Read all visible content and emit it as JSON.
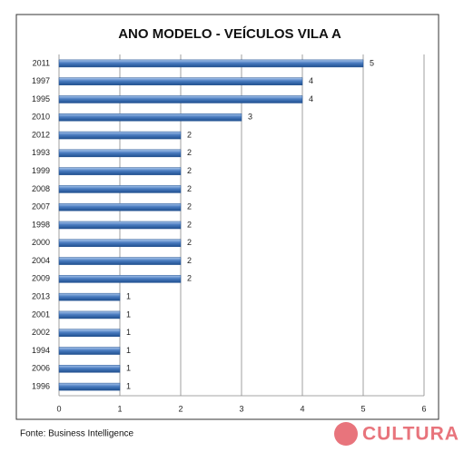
{
  "chart_data": {
    "type": "hbar",
    "title": "ANO MODELO - VEÍCULOS VILA A",
    "categories": [
      "2011",
      "1997",
      "1995",
      "2010",
      "2012",
      "1993",
      "1999",
      "2008",
      "2007",
      "1998",
      "2000",
      "2004",
      "2009",
      "2013",
      "2001",
      "2002",
      "1994",
      "2006",
      "1996"
    ],
    "values": [
      5,
      4,
      4,
      3,
      2,
      2,
      2,
      2,
      2,
      2,
      2,
      2,
      2,
      1,
      1,
      1,
      1,
      1,
      1
    ],
    "color": "#4a7cc0",
    "xlim": [
      0,
      6
    ],
    "xticks": [
      0,
      1,
      2,
      3,
      4,
      5,
      6
    ],
    "grid": true,
    "source": "Fonte: Business Intelligence",
    "logo": "CULTURA"
  }
}
